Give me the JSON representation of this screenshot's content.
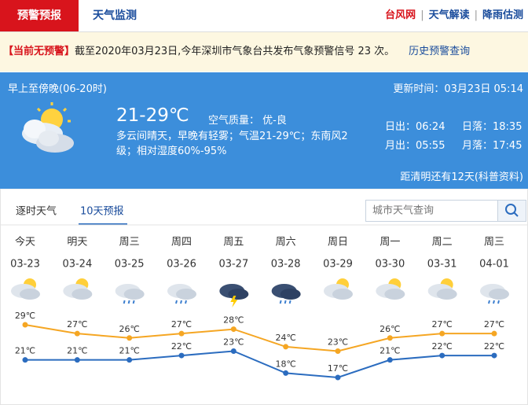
{
  "tabs": {
    "alert": "预警预报",
    "monitor": "天气监测"
  },
  "links": [
    "台风网",
    "天气解读",
    "降雨估测"
  ],
  "notice": {
    "label": "【当前无预警】",
    "text": "截至2020年03月23日,今年深圳市气象台共发布气象预警信号 23 次。",
    "link": "历史预警查询"
  },
  "today": {
    "period": "早上至傍晚(06-20时)",
    "update": "更新时间：03月23日 05:14",
    "temp": "21-29℃",
    "aqi": "空气质量： 优-良",
    "desc": "多云间晴天，早晚有轻雾；气温21-29℃；东南风2级；相对湿度60%-95%",
    "sunrise": "日出：06:24",
    "sunset": "日落：18:35",
    "moonrise": "月出：05:55",
    "moonset": "月落：17:45",
    "countdown": "距清明还有12天(科普资料)"
  },
  "forecast_tabs": [
    "逐时天气",
    "10天预报"
  ],
  "search_placeholder": "城市天气查询",
  "forecast": {
    "days": [
      "今天",
      "明天",
      "周三",
      "周四",
      "周五",
      "周六",
      "周日",
      "周一",
      "周二",
      "周三"
    ],
    "dates": [
      "03-23",
      "03-24",
      "03-25",
      "03-26",
      "03-27",
      "03-28",
      "03-29",
      "03-30",
      "03-31",
      "04-01"
    ],
    "highs": [
      29,
      27,
      26,
      27,
      28,
      24,
      23,
      26,
      27,
      27
    ],
    "high_labels": [
      "29℃",
      "27℃",
      "26℃",
      "27℃",
      "28℃",
      "24℃",
      "23℃",
      "26℃",
      "27℃",
      "27℃"
    ],
    "lows": [
      21,
      21,
      21,
      22,
      23,
      18,
      17,
      21,
      22,
      22
    ],
    "low_labels": [
      "21℃",
      "21℃",
      "21℃",
      "22℃",
      "23℃",
      "18℃",
      "17℃",
      "21℃",
      "22℃",
      "22℃"
    ],
    "high_color": "#f5a623",
    "low_color": "#2b6cbf"
  }
}
